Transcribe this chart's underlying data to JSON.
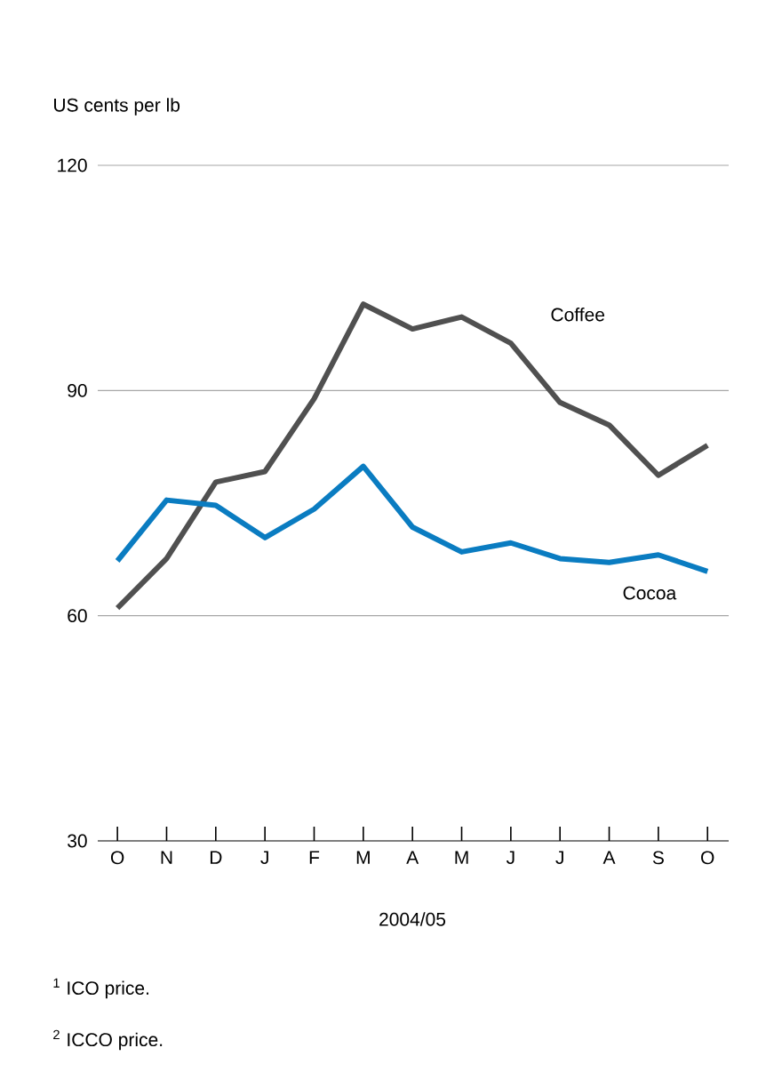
{
  "chart_data": {
    "type": "line",
    "ylabel": "US cents per lb",
    "xlabel": "2004/05",
    "categories": [
      "O",
      "N",
      "D",
      "J",
      "F",
      "M",
      "A",
      "M",
      "J",
      "J",
      "A",
      "S",
      "O"
    ],
    "series": [
      {
        "name": "Coffee",
        "color": "#505050",
        "values": [
          61,
          67.6,
          77.8,
          79.2,
          88.9,
          101.5,
          98.2,
          99.8,
          96.3,
          88.4,
          85.4,
          78.7,
          82.7
        ]
      },
      {
        "name": "Cocoa",
        "color": "#0a7cc1",
        "values": [
          67.3,
          75.4,
          74.7,
          70.4,
          74.2,
          79.9,
          71.8,
          68.5,
          69.7,
          67.6,
          67.1,
          68.1,
          65.9
        ]
      }
    ],
    "ylim": [
      30,
      120
    ],
    "yticks": [
      30,
      60,
      90,
      120
    ],
    "grid": "y",
    "legend": false,
    "marker": "none",
    "line_style": "solid",
    "annotations": [
      "$^{1}$ ICO price.",
      "$^{2}$ ICCO price."
    ]
  }
}
